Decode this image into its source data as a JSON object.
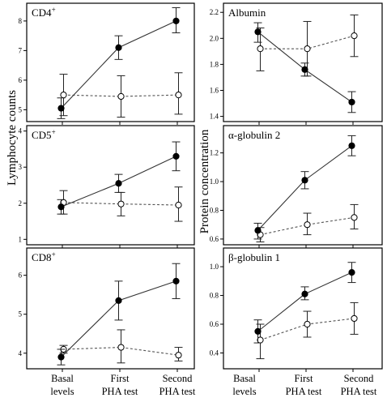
{
  "figure": {
    "left_ylabel": "Lymphocyte counts",
    "right_ylabel": "Protein concentration",
    "categories": [
      [
        "Basal",
        "levels"
      ],
      [
        "First",
        "PHA test"
      ],
      [
        "Second",
        "PHA test"
      ]
    ]
  },
  "chart_data": [
    {
      "id": "cd4",
      "type": "line",
      "title": "CD4",
      "title_sup": "+",
      "categories": [
        "Basal levels",
        "First PHA test",
        "Second PHA test"
      ],
      "ylim": [
        4.6,
        8.6
      ],
      "yticks": [
        5,
        6,
        7,
        8
      ],
      "tick_format": "int",
      "series": [
        {
          "style": "filled-solid",
          "values": [
            5.05,
            7.1,
            8.0
          ],
          "err_low": [
            4.7,
            6.7,
            7.6
          ],
          "err_high": [
            5.4,
            7.5,
            8.45
          ]
        },
        {
          "style": "open-dashed",
          "values": [
            5.5,
            5.45,
            5.5
          ],
          "err_low": [
            4.8,
            4.75,
            4.85
          ],
          "err_high": [
            6.2,
            6.15,
            6.25
          ]
        }
      ]
    },
    {
      "id": "albumin",
      "type": "line",
      "title": "Albumin",
      "title_sup": "",
      "categories": [
        "Basal levels",
        "First PHA test",
        "Second PHA test"
      ],
      "ylim": [
        1.36,
        2.27
      ],
      "yticks": [
        1.4,
        1.6,
        1.8,
        2.0,
        2.2
      ],
      "tick_format": "1dp",
      "series": [
        {
          "style": "filled-solid",
          "values": [
            2.05,
            1.76,
            1.51
          ],
          "err_low": [
            1.97,
            1.71,
            1.43
          ],
          "err_high": [
            2.12,
            1.81,
            1.59
          ]
        },
        {
          "style": "open-dashed",
          "values": [
            1.92,
            1.92,
            2.02
          ],
          "err_low": [
            1.75,
            1.71,
            1.86
          ],
          "err_high": [
            2.08,
            2.13,
            2.18
          ]
        }
      ]
    },
    {
      "id": "cd5",
      "type": "line",
      "title": "CD5",
      "title_sup": "+",
      "categories": [
        "Basal levels",
        "First PHA test",
        "Second PHA test"
      ],
      "ylim": [
        0.85,
        4.15
      ],
      "yticks": [
        1,
        2,
        3,
        4
      ],
      "tick_format": "int",
      "series": [
        {
          "style": "filled-solid",
          "values": [
            1.9,
            2.55,
            3.3
          ],
          "err_low": [
            1.7,
            2.3,
            2.9
          ],
          "err_high": [
            2.1,
            2.8,
            3.7
          ]
        },
        {
          "style": "open-dashed",
          "values": [
            2.02,
            1.98,
            1.95
          ],
          "err_low": [
            1.7,
            1.65,
            1.5
          ],
          "err_high": [
            2.35,
            2.3,
            2.45
          ]
        }
      ]
    },
    {
      "id": "alpha-globulin-2",
      "type": "line",
      "title": "α-globulin 2",
      "title_sup": "",
      "categories": [
        "Basal levels",
        "First PHA test",
        "Second PHA test"
      ],
      "ylim": [
        0.56,
        1.39
      ],
      "yticks": [
        0.6,
        0.8,
        1.0,
        1.2
      ],
      "tick_format": "1dp",
      "series": [
        {
          "style": "filled-solid",
          "values": [
            0.66,
            1.01,
            1.25
          ],
          "err_low": [
            0.6,
            0.95,
            1.18
          ],
          "err_high": [
            0.71,
            1.07,
            1.32
          ]
        },
        {
          "style": "open-dashed",
          "values": [
            0.63,
            0.7,
            0.75
          ],
          "err_low": [
            0.58,
            0.63,
            0.67
          ],
          "err_high": [
            0.68,
            0.78,
            0.84
          ]
        }
      ]
    },
    {
      "id": "cd8",
      "type": "line",
      "title": "CD8",
      "title_sup": "+",
      "categories": [
        "Basal levels",
        "First PHA test",
        "Second PHA test"
      ],
      "ylim": [
        3.6,
        6.7
      ],
      "yticks": [
        4,
        5,
        6
      ],
      "tick_format": "int",
      "series": [
        {
          "style": "filled-solid",
          "values": [
            3.9,
            5.35,
            5.85
          ],
          "err_low": [
            3.7,
            4.85,
            5.4
          ],
          "err_high": [
            4.1,
            5.85,
            6.3
          ]
        },
        {
          "style": "open-dashed",
          "values": [
            4.1,
            4.15,
            3.95
          ],
          "err_low": [
            4.0,
            3.75,
            3.8
          ],
          "err_high": [
            4.2,
            4.6,
            4.15
          ]
        }
      ]
    },
    {
      "id": "beta-globulin-1",
      "type": "line",
      "title": "β-globulin 1",
      "title_sup": "",
      "categories": [
        "Basal levels",
        "First PHA test",
        "Second PHA test"
      ],
      "ylim": [
        0.29,
        1.13
      ],
      "yticks": [
        0.4,
        0.6,
        0.8,
        1.0
      ],
      "tick_format": "1dp",
      "series": [
        {
          "style": "filled-solid",
          "values": [
            0.55,
            0.81,
            0.96
          ],
          "err_low": [
            0.47,
            0.77,
            0.89
          ],
          "err_high": [
            0.63,
            0.86,
            1.03
          ]
        },
        {
          "style": "open-dashed",
          "values": [
            0.49,
            0.6,
            0.64
          ],
          "err_low": [
            0.36,
            0.51,
            0.53
          ],
          "err_high": [
            0.6,
            0.69,
            0.75
          ]
        }
      ]
    }
  ]
}
